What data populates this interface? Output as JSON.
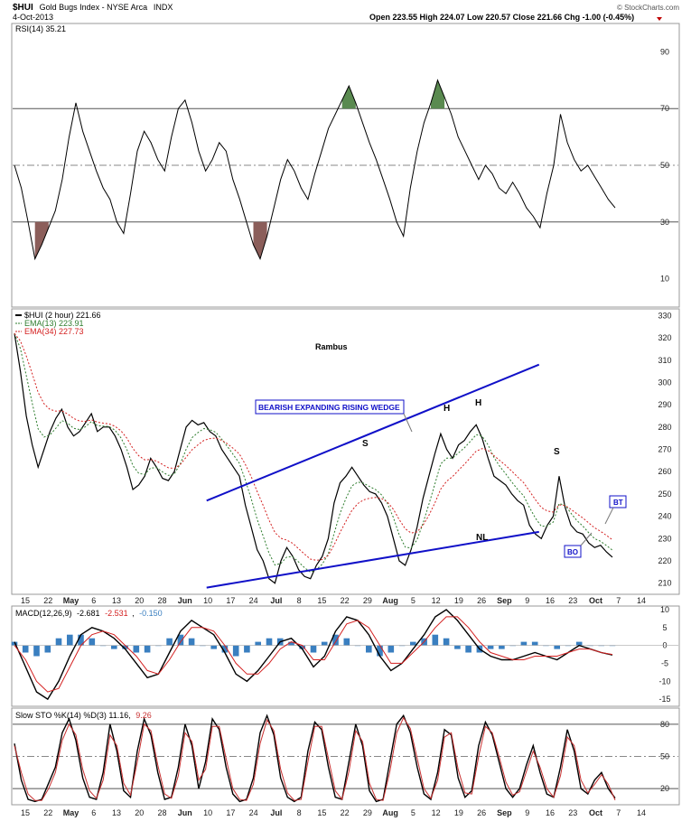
{
  "header": {
    "symbol": "$HUI",
    "name": "Gold Bugs Index - NYSE Arca",
    "exchange": "INDX",
    "date": "4-Oct-2013",
    "ohlc": "Open 223.55  High 224.07  Low 220.57  Close 221.66  Chg -1.00 (-0.45%)",
    "credit": "© StockCharts.com"
  },
  "colors": {
    "price": "#000000",
    "ema13": "#2e7d2e",
    "ema34": "#d42020",
    "trend": "#1010c8",
    "rsi_over": "#5a8a50",
    "rsi_under": "#8b5e5a",
    "macd_signal": "#d42020",
    "macd_hist": "#3a7fc0",
    "sto_d": "#c83030"
  },
  "x_axis": {
    "labels": [
      "15",
      "22",
      "May",
      "6",
      "13",
      "20",
      "28",
      "Jun",
      "10",
      "17",
      "24",
      "Jul",
      "8",
      "15",
      "22",
      "29",
      "Aug",
      "5",
      "12",
      "19",
      "26",
      "Sep",
      "9",
      "16",
      "23",
      "Oct",
      "7",
      "14"
    ]
  },
  "chart_data": [
    {
      "type": "line",
      "panel": "rsi",
      "legend": "RSI(14) 35.21",
      "ylim": [
        0,
        100
      ],
      "y_ticks": [
        10,
        30,
        50,
        70,
        90
      ],
      "guide_lines": [
        30,
        50,
        70
      ],
      "series": [
        {
          "name": "RSI(14)",
          "values": [
            50,
            42,
            30,
            17,
            22,
            28,
            34,
            45,
            60,
            72,
            62,
            55,
            48,
            42,
            38,
            30,
            26,
            40,
            55,
            62,
            58,
            52,
            48,
            60,
            70,
            73,
            65,
            55,
            48,
            52,
            58,
            55,
            45,
            38,
            30,
            22,
            17,
            25,
            35,
            45,
            52,
            48,
            42,
            38,
            47,
            55,
            63,
            68,
            73,
            78,
            72,
            65,
            58,
            52,
            45,
            38,
            30,
            25,
            42,
            55,
            65,
            72,
            80,
            74,
            68,
            60,
            55,
            50,
            45,
            50,
            47,
            42,
            40,
            44,
            40,
            35,
            32,
            28,
            40,
            50,
            68,
            58,
            52,
            48,
            50,
            46,
            42,
            38,
            35
          ]
        }
      ]
    },
    {
      "type": "line",
      "panel": "price",
      "title": "Rambus",
      "legend": [
        "$HUI (2 hour) 221.66",
        "EMA(13) 223.91",
        "EMA(34) 227.73"
      ],
      "ylim": [
        205,
        333
      ],
      "y_ticks": [
        210,
        220,
        230,
        240,
        250,
        260,
        270,
        280,
        290,
        300,
        310,
        320,
        330
      ],
      "series": [
        {
          "name": "$HUI (2 hour)",
          "values": [
            322,
            305,
            285,
            272,
            262,
            270,
            278,
            284,
            288,
            280,
            276,
            278,
            282,
            286,
            278,
            280,
            280,
            276,
            270,
            262,
            252,
            254,
            258,
            266,
            262,
            257,
            256,
            260,
            270,
            280,
            283,
            281,
            282,
            278,
            276,
            270,
            266,
            262,
            258,
            245,
            235,
            225,
            220,
            212,
            210,
            220,
            226,
            222,
            216,
            213,
            212,
            218,
            222,
            230,
            246,
            255,
            258,
            262,
            258,
            254,
            251,
            250,
            246,
            240,
            230,
            220,
            218,
            225,
            235,
            248,
            258,
            268,
            277,
            270,
            266,
            272,
            274,
            278,
            281,
            275,
            266,
            258,
            256,
            254,
            250,
            247,
            245,
            236,
            232,
            230,
            236,
            240,
            258,
            244,
            236,
            233,
            232,
            228,
            226,
            227,
            224,
            221.66
          ]
        }
      ],
      "trendlines": [
        {
          "label": "upper",
          "from": [
            24,
            247
          ],
          "to": [
            68,
            308
          ]
        },
        {
          "label": "lower",
          "from": [
            24,
            208
          ],
          "to": [
            68,
            233
          ]
        }
      ],
      "annotations": {
        "wedge_label": "BEARISH EXPANDING RISING WEDGE",
        "s1": "S",
        "h1": "H",
        "h2": "H",
        "s2": "S",
        "nl": "NL",
        "bo": "BO",
        "bt": "BT"
      }
    },
    {
      "type": "line",
      "panel": "macd",
      "legend": [
        "MACD(12,26,9)",
        "-2.681",
        "-2.531",
        "-0.150"
      ],
      "ylim": [
        -17,
        11
      ],
      "y_ticks": [
        -15,
        -10,
        -5,
        0,
        5,
        10
      ],
      "series": [
        {
          "name": "MACD(12,26,9)",
          "values": [
            1,
            -6,
            -13,
            -15,
            -10,
            -3,
            3,
            5,
            4,
            2,
            -1,
            -5,
            -9,
            -8,
            -2,
            4,
            7,
            5,
            3,
            -2,
            -8,
            -10,
            -7,
            -3,
            1,
            2,
            -1,
            -6,
            -3,
            4,
            8,
            7,
            3,
            -3,
            -7,
            -5,
            -1,
            3,
            8,
            10,
            7,
            3,
            -1,
            -3,
            -4,
            -4,
            -3,
            -2,
            -3,
            -4,
            -2,
            0,
            -1,
            -2,
            -2.681
          ]
        },
        {
          "name": "Signal",
          "values": [
            0,
            -4,
            -10,
            -13,
            -12,
            -6,
            0,
            3,
            4,
            3,
            0,
            -3,
            -7,
            -8,
            -4,
            1,
            5,
            5,
            4,
            0,
            -5,
            -8,
            -8,
            -5,
            -1,
            1,
            0,
            -4,
            -4,
            1,
            6,
            7,
            5,
            0,
            -5,
            -5,
            -2,
            1,
            5,
            8,
            8,
            5,
            1,
            -2,
            -3,
            -4,
            -4,
            -3,
            -3,
            -3,
            -2,
            -1,
            -1,
            -2,
            -2.531
          ]
        }
      ]
    },
    {
      "type": "line",
      "panel": "sto",
      "legend": [
        "Slow STO %K(14) %D(3) 11.16,",
        "9.26"
      ],
      "ylim": [
        5,
        95
      ],
      "y_ticks": [
        20,
        50,
        80
      ],
      "guide_lines": [
        20,
        50,
        80
      ],
      "series": [
        {
          "name": "%K(14)",
          "values": [
            62,
            28,
            10,
            8,
            10,
            25,
            40,
            72,
            85,
            65,
            30,
            12,
            10,
            35,
            80,
            55,
            18,
            12,
            55,
            85,
            70,
            35,
            10,
            12,
            40,
            80,
            60,
            20,
            45,
            85,
            75,
            40,
            15,
            8,
            10,
            30,
            72,
            88,
            70,
            30,
            12,
            8,
            12,
            55,
            82,
            75,
            40,
            12,
            10,
            45,
            80,
            60,
            18,
            8,
            10,
            45,
            80,
            88,
            72,
            40,
            15,
            10,
            35,
            75,
            70,
            30,
            12,
            18,
            60,
            82,
            70,
            45,
            20,
            12,
            20,
            42,
            60,
            35,
            15,
            12,
            40,
            75,
            55,
            20,
            15,
            28,
            35,
            20,
            11.16
          ]
        },
        {
          "name": "%D(3)",
          "values": [
            60,
            35,
            15,
            9,
            9,
            20,
            35,
            65,
            80,
            70,
            38,
            18,
            11,
            28,
            70,
            60,
            25,
            14,
            45,
            80,
            74,
            42,
            15,
            11,
            32,
            72,
            64,
            28,
            38,
            78,
            78,
            48,
            20,
            10,
            9,
            24,
            62,
            84,
            74,
            38,
            16,
            9,
            10,
            45,
            78,
            78,
            48,
            18,
            10,
            36,
            74,
            64,
            25,
            10,
            9,
            36,
            72,
            86,
            76,
            48,
            20,
            11,
            28,
            68,
            72,
            38,
            16,
            15,
            50,
            78,
            72,
            50,
            26,
            14,
            17,
            36,
            55,
            40,
            20,
            12,
            32,
            68,
            60,
            28,
            16,
            24,
            33,
            24,
            9.26
          ]
        }
      ]
    }
  ]
}
